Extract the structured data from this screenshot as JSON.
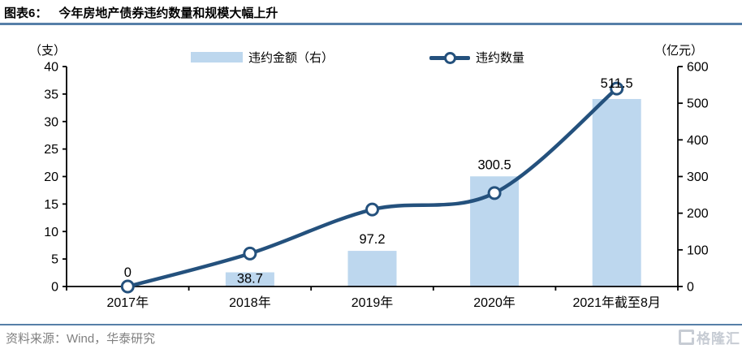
{
  "header": {
    "title_prefix": "图表6：",
    "title_text": "今年房地产债券违约数量和规模大幅上升"
  },
  "legend": [
    {
      "label": "违约金额（右）",
      "swatch": "bar"
    },
    {
      "label": "违约数量",
      "swatch": "line-marker"
    }
  ],
  "footer": {
    "source": "资料来源：Wind，华泰研究",
    "logo_text": "格隆汇"
  },
  "colors": {
    "bar_fill": "#BDD7EE",
    "line": "#24517D",
    "marker_fill": "#FFFFFF",
    "rule": "#567FA8",
    "axis": "#000000",
    "source_text": "#7F7F7F",
    "logo": "#C7CCD4"
  },
  "chart_data": {
    "type": "bar",
    "subtype": "combo-bar-line-dual-axis",
    "title": "今年房地产债券违约数量和规模大幅上升",
    "categories": [
      "2017年",
      "2018年",
      "2019年",
      "2020年",
      "2021年截至8月"
    ],
    "series": [
      {
        "name": "违约金额（右）",
        "chart_type": "bar",
        "axis": "right",
        "values": [
          0,
          38.7,
          97.2,
          300.5,
          511.5
        ],
        "data_labels": [
          "0",
          "38.7",
          "97.2",
          "300.5",
          "511.5"
        ],
        "color": "#BDD7EE"
      },
      {
        "name": "违约数量",
        "chart_type": "line",
        "axis": "left",
        "values": [
          0,
          6,
          14,
          17,
          36
        ],
        "color": "#24517D",
        "marker": "circle-white-fill"
      }
    ],
    "left_axis": {
      "unit": "（支）",
      "min": 0,
      "max": 40,
      "step": 5
    },
    "right_axis": {
      "unit": "（亿元）",
      "min": 0,
      "max": 600,
      "step": 100
    },
    "legend_position": "top",
    "grid": false
  }
}
